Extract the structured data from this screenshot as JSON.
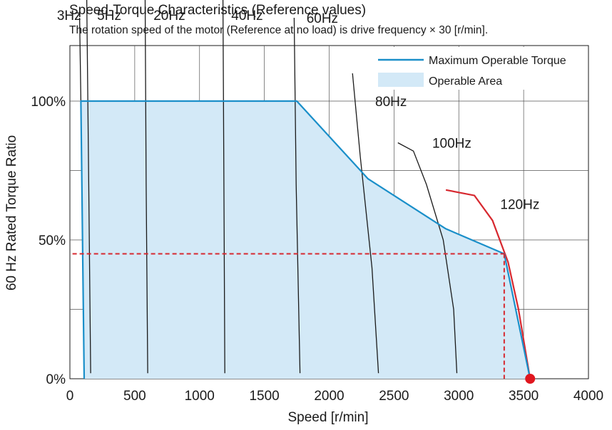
{
  "chart_data": {
    "type": "line",
    "title": "Speed-Torque Characteristics (Reference values)",
    "subtitle": "The rotation speed of the motor (Reference at no load) is drive frequency × 30 [r/min].",
    "xlabel": "Speed [r/min]",
    "ylabel": "60 Hz Rated Torque Ratio",
    "xlim": [
      0,
      4000
    ],
    "ylim": [
      0,
      120
    ],
    "grid": true,
    "x_ticks": [
      {
        "value": 0,
        "label": "0"
      },
      {
        "value": 500,
        "label": "500"
      },
      {
        "value": 1000,
        "label": "1000"
      },
      {
        "value": 1500,
        "label": "1500"
      },
      {
        "value": 2000,
        "label": "2000"
      },
      {
        "value": 2500,
        "label": "2500"
      },
      {
        "value": 3000,
        "label": "3000"
      },
      {
        "value": 3500,
        "label": "3500"
      },
      {
        "value": 4000,
        "label": "4000"
      }
    ],
    "y_ticks": [
      {
        "value": 0,
        "label": "0%"
      },
      {
        "value": 50,
        "label": "50%"
      },
      {
        "value": 100,
        "label": "100%"
      }
    ],
    "legend": {
      "placement": "top-right",
      "entries": [
        {
          "name": "Maximum Operable Torque",
          "kind": "line",
          "color": "#1a8fc9"
        },
        {
          "name": "Operable Area",
          "kind": "area",
          "color": "#d3e9f7"
        }
      ]
    },
    "max_operable_torque": {
      "color": "#1a8fc9",
      "fill_color": "#d3e9f7",
      "points": [
        [
          110,
          0
        ],
        [
          85,
          100
        ],
        [
          1750,
          100
        ],
        [
          2300,
          72
        ],
        [
          2900,
          54
        ],
        [
          3350,
          45
        ],
        [
          3550,
          0
        ]
      ]
    },
    "frequency_curves": [
      {
        "name": "3Hz",
        "color": "#1a1a1a",
        "points": [
          [
            75,
            130
          ],
          [
            85,
            100
          ],
          [
            110,
            0
          ]
        ]
      },
      {
        "name": "5Hz",
        "color": "#1a1a1a",
        "points": [
          [
            130,
            137
          ],
          [
            145,
            70
          ],
          [
            160,
            2
          ]
        ]
      },
      {
        "name": "20Hz",
        "color": "#1a1a1a",
        "points": [
          [
            580,
            140
          ],
          [
            588,
            70
          ],
          [
            600,
            2
          ]
        ]
      },
      {
        "name": "40Hz",
        "color": "#1a1a1a",
        "points": [
          [
            1180,
            140
          ],
          [
            1188,
            70
          ],
          [
            1195,
            2
          ]
        ]
      },
      {
        "name": "60Hz",
        "color": "#1a1a1a",
        "points": [
          [
            1730,
            130
          ],
          [
            1745,
            70
          ],
          [
            1775,
            2
          ]
        ]
      },
      {
        "name": "80Hz",
        "color": "#1a1a1a",
        "points": [
          [
            2180,
            110
          ],
          [
            2240,
            80
          ],
          [
            2330,
            40
          ],
          [
            2380,
            2
          ]
        ]
      },
      {
        "name": "100Hz",
        "color": "#1a1a1a",
        "points": [
          [
            2530,
            85
          ],
          [
            2650,
            82
          ],
          [
            2750,
            70
          ],
          [
            2880,
            50
          ],
          [
            2960,
            25
          ],
          [
            2985,
            2
          ]
        ]
      },
      {
        "name": "120Hz",
        "color": "#d7282f",
        "points": [
          [
            2900,
            68
          ],
          [
            3120,
            66
          ],
          [
            3260,
            57
          ],
          [
            3380,
            42
          ],
          [
            3460,
            25
          ],
          [
            3550,
            0
          ]
        ]
      }
    ],
    "reference_lines": {
      "color": "#d7282f",
      "horizontal_y": 45,
      "vertical_x": 3350,
      "x_start": 20
    },
    "marker": {
      "x": 3550,
      "y": 0,
      "color": "#e0161e"
    },
    "curve_labels": [
      {
        "text": "3Hz",
        "x": -100,
        "y": 131
      },
      {
        "text": "5Hz",
        "x": 210,
        "y": 131
      },
      {
        "text": "20Hz",
        "x": 645,
        "y": 131
      },
      {
        "text": "40Hz",
        "x": 1245,
        "y": 131
      },
      {
        "text": "60Hz",
        "x": 1825,
        "y": 130
      },
      {
        "text": "80Hz",
        "x": 2355,
        "y": 100
      },
      {
        "text": "100Hz",
        "x": 2795,
        "y": 85
      },
      {
        "text": "120Hz",
        "x": 3320,
        "y": 63
      }
    ]
  }
}
